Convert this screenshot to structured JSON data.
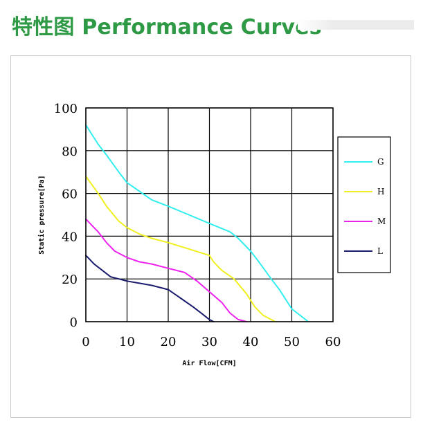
{
  "header": {
    "title": "特性图 Performance Curves"
  },
  "chart_data": {
    "type": "line",
    "title": "",
    "xlabel": "Air Flow[CFM]",
    "ylabel": "Static pressure[Pa]",
    "xlim": [
      0,
      60
    ],
    "ylim": [
      0,
      100
    ],
    "x_ticks": [
      0,
      10,
      20,
      30,
      40,
      50,
      60
    ],
    "y_ticks": [
      0,
      20,
      40,
      60,
      80,
      100
    ],
    "grid": true,
    "legend_position": "right",
    "series": [
      {
        "name": "G",
        "color": "#33eeee",
        "x": [
          0,
          3,
          5,
          8,
          10,
          13,
          16,
          20,
          25,
          30,
          35,
          37,
          40,
          42,
          45,
          47,
          50,
          52,
          54
        ],
        "y": [
          92,
          83,
          78,
          70,
          65,
          61,
          57,
          54,
          50,
          46,
          42,
          39,
          33,
          28,
          20,
          15,
          6,
          3,
          0
        ]
      },
      {
        "name": "H",
        "color": "#f0f020",
        "x": [
          0,
          3,
          5,
          8,
          10,
          13,
          16,
          20,
          25,
          30,
          31,
          33,
          36,
          39,
          41,
          43,
          46
        ],
        "y": [
          68,
          60,
          54,
          47,
          44,
          41,
          39,
          37,
          34,
          31,
          28,
          24,
          20,
          13,
          7,
          3,
          0
        ]
      },
      {
        "name": "M",
        "color": "#ee22ee",
        "x": [
          0,
          3,
          5,
          7,
          10,
          13,
          16,
          20,
          24,
          27,
          30,
          33,
          35,
          37,
          39
        ],
        "y": [
          48,
          42,
          37,
          33,
          30,
          28,
          27,
          25,
          23,
          19,
          14,
          9,
          4,
          1,
          0
        ]
      },
      {
        "name": "L",
        "color": "#1a1a6e",
        "x": [
          0,
          2,
          4,
          6,
          8,
          10,
          13,
          16,
          20,
          23,
          26,
          28,
          30,
          31
        ],
        "y": [
          31,
          27,
          24,
          21,
          20,
          19,
          18,
          17,
          15,
          11,
          7,
          4,
          1,
          0
        ]
      }
    ]
  }
}
